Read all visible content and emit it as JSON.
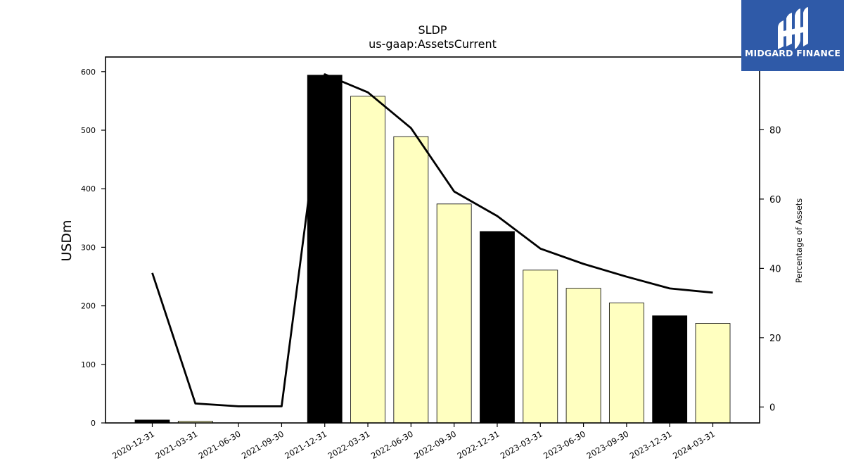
{
  "chart_data": {
    "type": "bar",
    "title": "SLDP",
    "subtitle": "us-gaap:AssetsCurrent",
    "ylabel": "USDm",
    "y2label": "Percentage of Assets",
    "categories": [
      "2020-12-31",
      "2021-03-31",
      "2021-06-30",
      "2021-09-30",
      "2021-12-31",
      "2022-03-31",
      "2022-06-30",
      "2022-09-30",
      "2022-12-31",
      "2023-03-31",
      "2023-06-30",
      "2023-09-30",
      "2023-12-31",
      "2024-03-31"
    ],
    "series": [
      {
        "type": "bar",
        "values": [
          5,
          3,
          0,
          0,
          594,
          558,
          489,
          374,
          327,
          261,
          230,
          205,
          183,
          170
        ],
        "colors": [
          "#000000",
          "#ffffc0",
          "#ffffc0",
          "#ffffc0",
          "#000000",
          "#ffffc0",
          "#ffffc0",
          "#ffffc0",
          "#000000",
          "#ffffc0",
          "#ffffc0",
          "#ffffc0",
          "#000000",
          "#ffffc0"
        ]
      },
      {
        "type": "line",
        "axis": "right",
        "values": [
          38.7,
          1,
          0.2,
          0.2,
          96,
          90.8,
          80.5,
          62.2,
          55.1,
          45.7,
          41.3,
          37.6,
          34.2,
          33
        ]
      }
    ],
    "ylim": [
      0,
      625
    ],
    "y_ticks": [
      0,
      100,
      200,
      300,
      400,
      500,
      600
    ],
    "y2lim": [
      -4.6,
      101
    ],
    "y2_ticks": [
      0,
      20,
      40,
      60,
      80
    ],
    "colors": {
      "highlight": "#000000",
      "bar": "#ffffc0",
      "line": "#000000"
    }
  },
  "logo": {
    "text": "MIDGARD FINANCE",
    "bg": "#2f5aa8"
  }
}
